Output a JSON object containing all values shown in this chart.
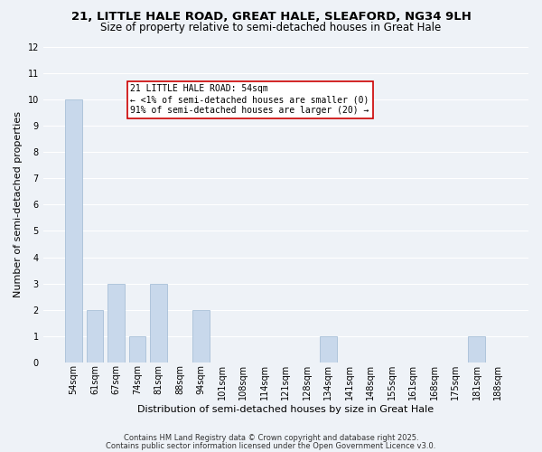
{
  "title": "21, LITTLE HALE ROAD, GREAT HALE, SLEAFORD, NG34 9LH",
  "subtitle": "Size of property relative to semi-detached houses in Great Hale",
  "xlabel": "Distribution of semi-detached houses by size in Great Hale",
  "ylabel": "Number of semi-detached properties",
  "bin_labels": [
    "54sqm",
    "61sqm",
    "67sqm",
    "74sqm",
    "81sqm",
    "88sqm",
    "94sqm",
    "101sqm",
    "108sqm",
    "114sqm",
    "121sqm",
    "128sqm",
    "134sqm",
    "141sqm",
    "148sqm",
    "155sqm",
    "161sqm",
    "168sqm",
    "175sqm",
    "181sqm",
    "188sqm"
  ],
  "bin_values": [
    10,
    2,
    3,
    1,
    3,
    0,
    2,
    0,
    0,
    0,
    0,
    0,
    1,
    0,
    0,
    0,
    0,
    0,
    0,
    1,
    0
  ],
  "bar_color": "#c8d8eb",
  "bar_edge_color": "#a8c0d8",
  "highlight_bin": 0,
  "annotation_title": "21 LITTLE HALE ROAD: 54sqm",
  "annotation_line1": "← <1% of semi-detached houses are smaller (0)",
  "annotation_line2": "91% of semi-detached houses are larger (20) →",
  "annotation_box_facecolor": "#ffffff",
  "annotation_box_edgecolor": "#cc0000",
  "ylim": [
    0,
    12
  ],
  "yticks": [
    0,
    1,
    2,
    3,
    4,
    5,
    6,
    7,
    8,
    9,
    10,
    11,
    12
  ],
  "footer1": "Contains HM Land Registry data © Crown copyright and database right 2025.",
  "footer2": "Contains public sector information licensed under the Open Government Licence v3.0.",
  "background_color": "#eef2f7",
  "grid_color": "#ffffff",
  "title_fontsize": 9.5,
  "subtitle_fontsize": 8.5,
  "tick_fontsize": 7,
  "label_fontsize": 8,
  "annotation_fontsize": 7,
  "footer_fontsize": 6
}
